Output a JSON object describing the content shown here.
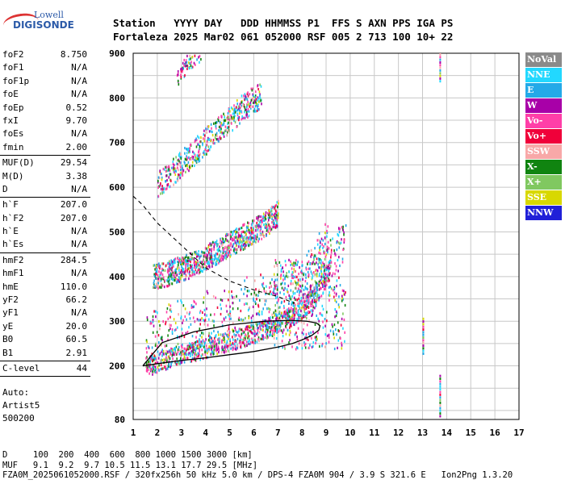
{
  "logo": {
    "line1": "Lowell",
    "line2": "DIGISONDE"
  },
  "header": {
    "row1": "Station   YYYY DAY   DDD HHMMSS P1  FFS S AXN PPS IGA PS",
    "row2": "Fortaleza 2025 Mar02 061 052000 RSF 005 2 713 100 10+ 22"
  },
  "params": [
    {
      "group": [
        {
          "k": "foF2",
          "v": "8.750"
        },
        {
          "k": "foF1",
          "v": "N/A"
        },
        {
          "k": "foF1p",
          "v": "N/A"
        },
        {
          "k": "foE",
          "v": "N/A"
        },
        {
          "k": "foEp",
          "v": "0.52"
        },
        {
          "k": "fxI",
          "v": "9.70"
        },
        {
          "k": "foEs",
          "v": "N/A"
        },
        {
          "k": "fmin",
          "v": "2.00"
        }
      ]
    },
    {
      "group": [
        {
          "k": "MUF(D)",
          "v": "29.54"
        },
        {
          "k": "M(D)",
          "v": "3.38"
        },
        {
          "k": "D",
          "v": "N/A"
        }
      ]
    },
    {
      "group": [
        {
          "k": "h`F",
          "v": "207.0"
        },
        {
          "k": "h`F2",
          "v": "207.0"
        },
        {
          "k": "h`E",
          "v": "N/A"
        },
        {
          "k": "h`Es",
          "v": "N/A"
        }
      ]
    },
    {
      "group": [
        {
          "k": "hmF2",
          "v": "284.5"
        },
        {
          "k": "hmF1",
          "v": "N/A"
        },
        {
          "k": "hmE",
          "v": "110.0"
        },
        {
          "k": "yF2",
          "v": "66.2"
        },
        {
          "k": "yF1",
          "v": "N/A"
        },
        {
          "k": "yE",
          "v": "20.0"
        },
        {
          "k": "B0",
          "v": "60.5"
        },
        {
          "k": "B1",
          "v": "2.91"
        }
      ]
    },
    {
      "group": [
        {
          "k": "C-level",
          "v": "44"
        }
      ]
    }
  ],
  "auto": {
    "line1": "Auto:",
    "line2": "Artist5",
    "line3": "500200"
  },
  "legend": [
    {
      "label": "NoVal",
      "color": "#8a8a8a"
    },
    {
      "label": "NNE",
      "color": "#22d8ff"
    },
    {
      "label": "E",
      "color": "#23a9e8"
    },
    {
      "label": "W",
      "color": "#a800a8"
    },
    {
      "label": "Vo-",
      "color": "#ff3fa8"
    },
    {
      "label": "Vo+",
      "color": "#f0003a"
    },
    {
      "label": "SSW",
      "color": "#f8a8a8"
    },
    {
      "label": "X-",
      "color": "#108410"
    },
    {
      "label": "X+",
      "color": "#80c860"
    },
    {
      "label": "SSE",
      "color": "#d8d800"
    },
    {
      "label": "NNW",
      "color": "#2020d8"
    }
  ],
  "chart_data": {
    "type": "scatter",
    "xlim": [
      1,
      17
    ],
    "ylim": [
      80,
      900
    ],
    "x_ticks": [
      "1",
      "2",
      "3",
      "4",
      "5",
      "6",
      "7",
      "8",
      "9",
      "10",
      "11",
      "12",
      "13",
      "14",
      "15",
      "16",
      "17"
    ],
    "y_ticks": [
      "80",
      "200",
      "300",
      "400",
      "500",
      "600",
      "700",
      "800",
      "900"
    ],
    "grid": true,
    "ionogram_traces": [
      {
        "name": "F-trace",
        "x": [
          1.5,
          2,
          2.5,
          3,
          3.5,
          4,
          4.5,
          5,
          5.5,
          6,
          6.5,
          7,
          7.5,
          8,
          8.3,
          8.6,
          8.9,
          9.2
        ],
        "y": [
          200,
          210,
          220,
          228,
          235,
          242,
          250,
          258,
          266,
          275,
          286,
          298,
          312,
          330,
          345,
          365,
          390,
          430
        ]
      },
      {
        "name": "2F-trace",
        "x": [
          1.8,
          2.5,
          3,
          3.5,
          4,
          4.5,
          5,
          5.5,
          6,
          6.5,
          7
        ],
        "y": [
          400,
          410,
          420,
          430,
          445,
          460,
          475,
          490,
          505,
          520,
          545
        ]
      },
      {
        "name": "3F-trace",
        "x": [
          2,
          2.5,
          3,
          3.5,
          4,
          4.5,
          5,
          5.5,
          6,
          6.3
        ],
        "y": [
          610,
          630,
          655,
          680,
          705,
          730,
          755,
          780,
          800,
          810
        ]
      },
      {
        "name": "4F-trace",
        "x": [
          2.8,
          3,
          3.2,
          3.5,
          3.8
        ],
        "y": [
          840,
          860,
          880,
          895,
          905
        ]
      }
    ],
    "profile_curve": {
      "x": [
        1.4,
        2,
        3,
        4,
        5,
        6,
        7,
        7.6,
        8,
        8.4,
        8.7,
        8.75,
        8.6,
        8.2,
        7.5,
        6.5,
        5,
        3.5,
        2.2,
        1.4
      ],
      "y": [
        200,
        205,
        212,
        218,
        225,
        232,
        242,
        250,
        258,
        268,
        280,
        290,
        296,
        300,
        302,
        300,
        292,
        276,
        252,
        200
      ]
    },
    "muf_curve": {
      "x": [
        1,
        1.4,
        2,
        3,
        4,
        5,
        6,
        7,
        7.7
      ],
      "y": [
        580,
        560,
        520,
        470,
        420,
        390,
        370,
        355,
        340
      ]
    }
  },
  "footer": {
    "row1": "D     100  200  400  600  800 1000 1500 3000 [km]",
    "row2": "MUF   9.1  9.2  9.7 10.5 11.5 13.1 17.7 29.5 [MHz]",
    "row3": "FZA0M_2025061052000.RSF / 320fx256h 50 kHz 5.0 km / DPS-4 FZA0M 904 / 3.9 S 321.6 E   Ion2Png 1.3.20"
  }
}
